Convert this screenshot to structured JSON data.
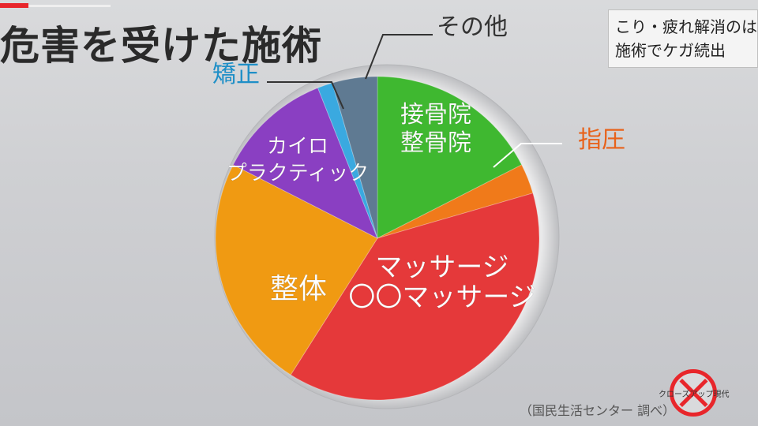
{
  "header": {
    "title": "危害を受けた施術",
    "subtitle_line1": "こり・疲れ解消のはず",
    "subtitle_line2": "施術でケガ続出"
  },
  "footer": {
    "source": "（国民生活センター 調べ）",
    "logo_text": "クローズアップ現代"
  },
  "colors": {
    "accent": "#e8262b",
    "massage": "#e5393a",
    "seitai": "#f09a12",
    "chiro": "#8a3fc2",
    "kyousei": "#3aa9e0",
    "other": "#5f7a92",
    "sekkotsu": "#3fb830",
    "shiatsu": "#f07a1a"
  },
  "chart_data": {
    "type": "pie",
    "title": "危害を受けた施術",
    "start_angle_deg": 0,
    "direction": "clockwise",
    "slices": [
      {
        "label": "接骨院\n整骨院",
        "value": 17.5,
        "color": "#3fb830",
        "label_color": "#ffffff",
        "label_pos": "inside"
      },
      {
        "label": "指圧",
        "value": 3.0,
        "color": "#f07a1a",
        "label_color": "#e8621a",
        "label_pos": "outside"
      },
      {
        "label": "マッサージ\n〇〇マッサージ",
        "value": 38.5,
        "color": "#e5393a",
        "label_color": "#ffffff",
        "label_pos": "inside"
      },
      {
        "label": "整体",
        "value": 23.5,
        "color": "#f09a12",
        "label_color": "#ffffff",
        "label_pos": "inside"
      },
      {
        "label": "カイロ\nプラクティック",
        "value": 11.5,
        "color": "#8a3fc2",
        "label_color": "#ffffff",
        "label_pos": "inside"
      },
      {
        "label": "矯正",
        "value": 1.5,
        "color": "#3aa9e0",
        "label_color": "#1e8fc7",
        "label_pos": "outside"
      },
      {
        "label": "その他",
        "value": 4.5,
        "color": "#5f7a92",
        "label_color": "#333333",
        "label_pos": "outside"
      }
    ]
  }
}
